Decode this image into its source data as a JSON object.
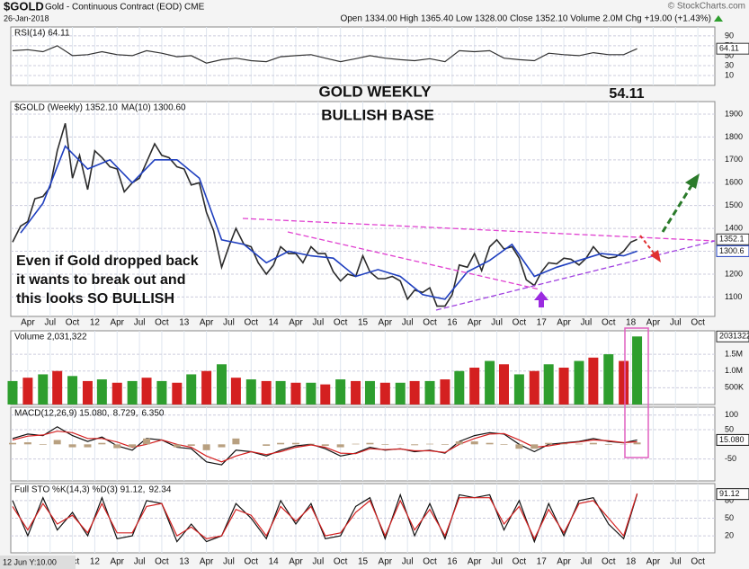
{
  "header": {
    "symbol": "$GOLD",
    "description": "Gold - Continuous Contract (EOD) CME",
    "date": "26-Jan-2018",
    "quote": "Open 1334.00 High 1365.40 Low 1328.00 Close 1352.10 Volume 2.0M Chg +19.00 (+1.43%)",
    "watermark": "© StockCharts.com"
  },
  "footer": "12 Jun Y:10.00",
  "xlim": [
    2011.06,
    2018.94
  ],
  "xticks": [
    {
      "value": 2011.25,
      "label": "Apr"
    },
    {
      "value": 2011.5,
      "label": "Jul"
    },
    {
      "value": 2011.75,
      "label": "Oct"
    },
    {
      "value": 2012,
      "label": "12"
    },
    {
      "value": 2012.25,
      "label": "Apr"
    },
    {
      "value": 2012.5,
      "label": "Jul"
    },
    {
      "value": 2012.75,
      "label": "Oct"
    },
    {
      "value": 2013,
      "label": "13"
    },
    {
      "value": 2013.25,
      "label": "Apr"
    },
    {
      "value": 2013.5,
      "label": "Jul"
    },
    {
      "value": 2013.75,
      "label": "Oct"
    },
    {
      "value": 2014,
      "label": "14"
    },
    {
      "value": 2014.25,
      "label": "Apr"
    },
    {
      "value": 2014.5,
      "label": "Jul"
    },
    {
      "value": 2014.75,
      "label": "Oct"
    },
    {
      "value": 2015,
      "label": "15"
    },
    {
      "value": 2015.25,
      "label": "Apr"
    },
    {
      "value": 2015.5,
      "label": "Jul"
    },
    {
      "value": 2015.75,
      "label": "Oct"
    },
    {
      "value": 2016,
      "label": "16"
    },
    {
      "value": 2016.25,
      "label": "Apr"
    },
    {
      "value": 2016.5,
      "label": "Jul"
    },
    {
      "value": 2016.75,
      "label": "Oct"
    },
    {
      "value": 2017,
      "label": "17"
    },
    {
      "value": 2017.25,
      "label": "Apr"
    },
    {
      "value": 2017.5,
      "label": "Jul"
    },
    {
      "value": 2017.75,
      "label": "Oct"
    },
    {
      "value": 2018,
      "label": "18"
    },
    {
      "value": 2018.25,
      "label": "Apr"
    },
    {
      "value": 2018.5,
      "label": "Jul"
    },
    {
      "value": 2018.75,
      "label": "Oct"
    }
  ],
  "chart_data": [
    {
      "type": "line",
      "ylim": [
        -10,
        108
      ],
      "yticks": [
        10,
        30,
        50,
        70,
        90
      ],
      "grid": true,
      "x": [
        2011.08,
        2011.25,
        2011.42,
        2011.58,
        2011.75,
        2011.92,
        2012.08,
        2012.25,
        2012.42,
        2012.58,
        2012.75,
        2012.92,
        2013.08,
        2013.25,
        2013.42,
        2013.58,
        2013.75,
        2013.92,
        2014.08,
        2014.25,
        2014.42,
        2014.58,
        2014.75,
        2014.92,
        2015.08,
        2015.25,
        2015.42,
        2015.58,
        2015.75,
        2015.92,
        2016.08,
        2016.25,
        2016.42,
        2016.58,
        2016.75,
        2016.92,
        2017.08,
        2017.25,
        2017.42,
        2017.58,
        2017.75,
        2017.92,
        2018.07
      ],
      "series": [
        {
          "name": "RSI(14) 64.11",
          "color": "#333333",
          "values": [
            60,
            62,
            58,
            70,
            50,
            52,
            58,
            52,
            50,
            60,
            55,
            48,
            50,
            35,
            42,
            45,
            40,
            38,
            48,
            50,
            52,
            45,
            38,
            44,
            50,
            45,
            42,
            40,
            44,
            38,
            60,
            58,
            60,
            45,
            42,
            40,
            55,
            52,
            50,
            56,
            52,
            52,
            64.11
          ]
        }
      ],
      "tags": [
        64.11
      ]
    },
    {
      "type": "line",
      "ylim": [
        1015,
        1955
      ],
      "yticks": [
        1100,
        1200,
        1300,
        1400,
        1500,
        1600,
        1700,
        1800,
        1900
      ],
      "grid": true,
      "series": [
        {
          "name": "$GOLD (Weekly) 1352.10",
          "color": "#2b2b2b",
          "x": [
            2011.08,
            2011.17,
            2011.25,
            2011.33,
            2011.42,
            2011.5,
            2011.58,
            2011.67,
            2011.75,
            2011.83,
            2011.92,
            2012,
            2012.08,
            2012.17,
            2012.25,
            2012.33,
            2012.42,
            2012.5,
            2012.58,
            2012.67,
            2012.75,
            2012.83,
            2012.92,
            2013,
            2013.08,
            2013.17,
            2013.25,
            2013.33,
            2013.42,
            2013.5,
            2013.58,
            2013.67,
            2013.75,
            2013.83,
            2013.92,
            2014,
            2014.08,
            2014.17,
            2014.25,
            2014.33,
            2014.42,
            2014.5,
            2014.58,
            2014.67,
            2014.75,
            2014.83,
            2014.92,
            2015,
            2015.08,
            2015.17,
            2015.25,
            2015.33,
            2015.42,
            2015.5,
            2015.58,
            2015.67,
            2015.75,
            2015.83,
            2015.92,
            2016,
            2016.08,
            2016.17,
            2016.25,
            2016.33,
            2016.42,
            2016.5,
            2016.58,
            2016.67,
            2016.75,
            2016.83,
            2016.92,
            2017,
            2017.08,
            2017.17,
            2017.25,
            2017.33,
            2017.42,
            2017.5,
            2017.58,
            2017.67,
            2017.75,
            2017.83,
            2017.92,
            2018,
            2018.07
          ],
          "values": [
            1340,
            1410,
            1430,
            1530,
            1540,
            1580,
            1740,
            1860,
            1620,
            1720,
            1570,
            1740,
            1710,
            1670,
            1660,
            1560,
            1600,
            1620,
            1690,
            1770,
            1720,
            1710,
            1670,
            1660,
            1590,
            1600,
            1470,
            1390,
            1230,
            1320,
            1400,
            1330,
            1320,
            1250,
            1200,
            1240,
            1320,
            1290,
            1290,
            1250,
            1320,
            1290,
            1290,
            1210,
            1170,
            1200,
            1190,
            1280,
            1210,
            1180,
            1180,
            1190,
            1170,
            1090,
            1130,
            1120,
            1140,
            1060,
            1060,
            1110,
            1240,
            1230,
            1290,
            1215,
            1320,
            1350,
            1310,
            1320,
            1270,
            1175,
            1150,
            1210,
            1250,
            1245,
            1270,
            1265,
            1240,
            1270,
            1320,
            1280,
            1270,
            1275,
            1300,
            1340,
            1352.1
          ]
        },
        {
          "name": "MA(10) 1300.60",
          "color": "#1f3fbf",
          "x": [
            2011.17,
            2011.42,
            2011.67,
            2011.92,
            2012.17,
            2012.42,
            2012.67,
            2012.92,
            2013.17,
            2013.42,
            2013.67,
            2013.92,
            2014.17,
            2014.42,
            2014.67,
            2014.92,
            2015.17,
            2015.42,
            2015.67,
            2015.92,
            2016.17,
            2016.42,
            2016.67,
            2016.92,
            2017.17,
            2017.42,
            2017.67,
            2017.92,
            2018.07
          ],
          "values": [
            1380,
            1510,
            1760,
            1660,
            1700,
            1600,
            1700,
            1700,
            1620,
            1350,
            1330,
            1250,
            1300,
            1280,
            1270,
            1190,
            1220,
            1190,
            1110,
            1090,
            1210,
            1260,
            1330,
            1190,
            1230,
            1260,
            1290,
            1280,
            1300.6
          ]
        }
      ],
      "tags": [
        1352.1,
        1300.6
      ],
      "annotations": [
        {
          "text": "GOLD WEEKLY",
          "color": "#e020c8"
        },
        {
          "text": "BULLISH BASE",
          "color": "#a020e0"
        },
        {
          "text": "54.11",
          "color": "#e01010"
        },
        {
          "text": "Even if Gold dropped back",
          "color": "#1a2fd0"
        },
        {
          "text": "it wants to break out and",
          "color": "#1a2fd0"
        },
        {
          "text": "this looks SO BULLISH",
          "color": "#1a2fd0"
        }
      ]
    },
    {
      "type": "bar",
      "ylim": [
        0,
        2200000
      ],
      "yticks": [
        {
          "value": 500000,
          "label": "500K"
        },
        {
          "value": 1000000,
          "label": "1.0M"
        },
        {
          "value": 1500000,
          "label": "1.5M"
        }
      ],
      "grid": true,
      "x": [
        2011.08,
        2011.25,
        2011.42,
        2011.58,
        2011.75,
        2011.92,
        2012.08,
        2012.25,
        2012.42,
        2012.58,
        2012.75,
        2012.92,
        2013.08,
        2013.25,
        2013.42,
        2013.58,
        2013.75,
        2013.92,
        2014.08,
        2014.25,
        2014.42,
        2014.58,
        2014.75,
        2014.92,
        2015.08,
        2015.25,
        2015.42,
        2015.58,
        2015.75,
        2015.92,
        2016.08,
        2016.25,
        2016.42,
        2016.58,
        2016.75,
        2016.92,
        2017.08,
        2017.25,
        2017.42,
        2017.58,
        2017.75,
        2017.92,
        2018.07
      ],
      "colors": [
        "#2e9e2e",
        "#d42020"
      ],
      "series": [
        {
          "name": "Volume 2,031,322",
          "color": "#2b2b2b",
          "values": [
            700000,
            800000,
            900000,
            1000000,
            850000,
            700000,
            750000,
            650000,
            700000,
            800000,
            700000,
            650000,
            900000,
            1000000,
            1200000,
            800000,
            750000,
            700000,
            700000,
            650000,
            650000,
            600000,
            750000,
            700000,
            700000,
            650000,
            650000,
            700000,
            700000,
            750000,
            1000000,
            1100000,
            1300000,
            1200000,
            900000,
            1000000,
            1200000,
            1100000,
            1300000,
            1400000,
            1500000,
            1300000,
            2031322
          ]
        }
      ],
      "tags": [
        2031322
      ]
    },
    {
      "type": "line",
      "ylim": [
        -125,
        127
      ],
      "yticks": [
        -50,
        50,
        100
      ],
      "grid": true,
      "x": [
        2011.08,
        2011.25,
        2011.42,
        2011.58,
        2011.75,
        2011.92,
        2012.08,
        2012.25,
        2012.42,
        2012.58,
        2012.75,
        2012.92,
        2013.08,
        2013.25,
        2013.42,
        2013.58,
        2013.75,
        2013.92,
        2014.08,
        2014.25,
        2014.42,
        2014.58,
        2014.75,
        2014.92,
        2015.08,
        2015.25,
        2015.42,
        2015.58,
        2015.75,
        2015.92,
        2016.08,
        2016.25,
        2016.42,
        2016.58,
        2016.75,
        2016.92,
        2017.08,
        2017.25,
        2017.42,
        2017.58,
        2017.75,
        2017.92,
        2018.07
      ],
      "series": [
        {
          "name": "MACD(12,26,9) 15.080,",
          "color": "#111111",
          "values": [
            20,
            35,
            30,
            60,
            30,
            10,
            25,
            -5,
            -20,
            20,
            15,
            -10,
            -15,
            -60,
            -70,
            -20,
            -25,
            -40,
            -20,
            -5,
            0,
            -15,
            -40,
            -30,
            -10,
            -20,
            -15,
            -25,
            -20,
            -30,
            10,
            30,
            40,
            35,
            0,
            -25,
            0,
            5,
            10,
            20,
            10,
            5,
            15.08
          ]
        },
        {
          "name": "8.729,",
          "color": "#d42020",
          "values": [
            15,
            28,
            32,
            45,
            40,
            20,
            20,
            8,
            -10,
            0,
            15,
            0,
            -10,
            -40,
            -60,
            -40,
            -25,
            -35,
            -25,
            -10,
            -2,
            -10,
            -30,
            -32,
            -15,
            -18,
            -16,
            -22,
            -22,
            -28,
            0,
            20,
            35,
            37,
            15,
            -10,
            -5,
            3,
            8,
            15,
            12,
            6,
            8.729
          ]
        },
        {
          "name": "6.350",
          "color": "#b8a080",
          "type": "bar",
          "values": [
            5,
            7,
            -2,
            15,
            -10,
            -10,
            5,
            -13,
            -10,
            20,
            0,
            -10,
            -5,
            -20,
            -10,
            20,
            0,
            -5,
            5,
            5,
            2,
            -5,
            -10,
            2,
            5,
            -2,
            1,
            -3,
            2,
            -2,
            10,
            10,
            5,
            -2,
            -15,
            -15,
            5,
            2,
            2,
            5,
            -2,
            -1,
            6.35
          ]
        }
      ],
      "tags": [
        {
          "value": 15.08,
          "label": "15.080"
        }
      ]
    },
    {
      "type": "line",
      "ylim": [
        -9,
        109
      ],
      "yticks": [
        20,
        50,
        80
      ],
      "grid": true,
      "x": [
        2011.08,
        2011.25,
        2011.42,
        2011.58,
        2011.75,
        2011.92,
        2012.08,
        2012.25,
        2012.42,
        2012.58,
        2012.75,
        2012.92,
        2013.08,
        2013.25,
        2013.42,
        2013.58,
        2013.75,
        2013.92,
        2014.08,
        2014.25,
        2014.42,
        2014.58,
        2014.75,
        2014.92,
        2015.08,
        2015.25,
        2015.42,
        2015.58,
        2015.75,
        2015.92,
        2016.08,
        2016.25,
        2016.42,
        2016.58,
        2016.75,
        2016.92,
        2017.08,
        2017.25,
        2017.42,
        2017.58,
        2017.75,
        2017.92,
        2018.07
      ],
      "series": [
        {
          "name": "Full STO %K(14,3) %D(3) 91.12,",
          "color": "#111111",
          "values": [
            80,
            20,
            85,
            30,
            60,
            20,
            85,
            15,
            20,
            80,
            75,
            10,
            40,
            10,
            20,
            75,
            50,
            15,
            80,
            40,
            75,
            15,
            20,
            70,
            85,
            15,
            90,
            20,
            75,
            15,
            90,
            85,
            90,
            30,
            80,
            10,
            75,
            20,
            80,
            85,
            40,
            15,
            91.12
          ]
        },
        {
          "name": "92.34",
          "color": "#d42020",
          "values": [
            70,
            30,
            75,
            40,
            55,
            25,
            75,
            25,
            25,
            70,
            75,
            20,
            35,
            15,
            20,
            65,
            55,
            20,
            70,
            45,
            70,
            20,
            25,
            60,
            80,
            20,
            80,
            30,
            65,
            20,
            85,
            85,
            85,
            40,
            70,
            15,
            65,
            25,
            75,
            80,
            50,
            20,
            92.34
          ]
        }
      ],
      "tags": [
        91.12
      ]
    }
  ]
}
